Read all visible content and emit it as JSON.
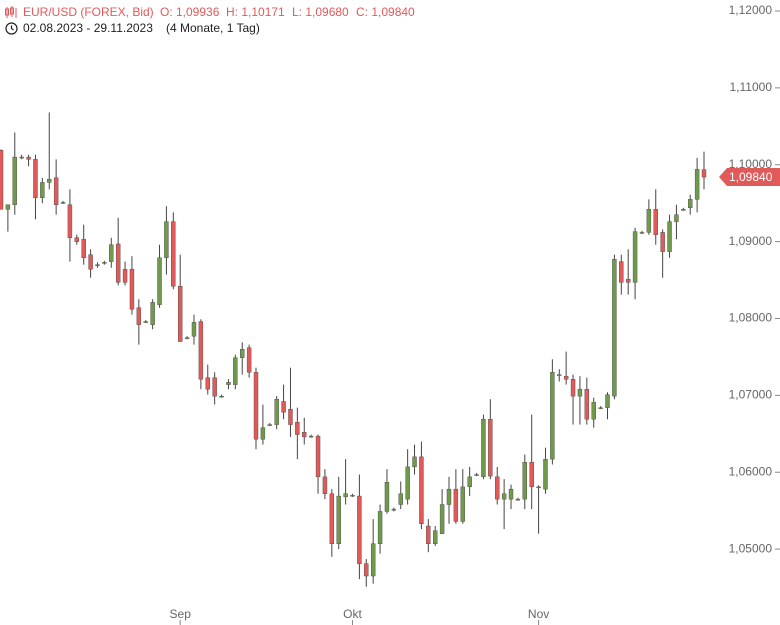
{
  "header": {
    "instrument": "EUR/USD (FOREX, Bid)",
    "open": "O: 1,09936",
    "high": "H: 1,10171",
    "low": "L: 1,09680",
    "close": "C: 1,09840",
    "range": "02.08.2023 - 29.11.2023",
    "duration": "(4 Monate, 1 Tag)"
  },
  "chart_data": {
    "type": "candlestick",
    "categories": [
      null,
      null,
      null,
      null,
      null,
      null,
      null,
      null,
      null,
      null,
      null,
      null,
      null,
      null,
      null,
      null,
      null,
      null,
      null,
      null,
      null,
      null,
      null,
      null,
      null,
      null,
      "Sep",
      null,
      null,
      null,
      null,
      null,
      null,
      null,
      null,
      null,
      null,
      null,
      null,
      null,
      null,
      null,
      null,
      null,
      null,
      null,
      null,
      null,
      null,
      null,
      null,
      "Okt",
      null,
      null,
      null,
      null,
      null,
      null,
      null,
      null,
      null,
      null,
      null,
      null,
      null,
      null,
      null,
      null,
      null,
      null,
      null,
      null,
      null,
      null,
      null,
      null,
      null,
      null,
      "Nov",
      null,
      null,
      null,
      null,
      null,
      null,
      null,
      null,
      null,
      null,
      null,
      null,
      null,
      null,
      null,
      null,
      null,
      null,
      null,
      null,
      null,
      null,
      null,
      null
    ],
    "open": [
      1.1019,
      1.0942,
      1.0948,
      1.101,
      1.101,
      1.1007,
      1.0957,
      1.0977,
      1.0983,
      1.0951,
      1.0948,
      1.0905,
      1.0903,
      1.0883,
      1.087,
      1.0873,
      1.0874,
      1.0897,
      1.0864,
      1.0864,
      1.0814,
      1.0796,
      1.0792,
      1.0818,
      1.0879,
      1.0926,
      1.0842,
      1.0775,
      1.0777,
      1.0796,
      1.0723,
      1.0723,
      1.0699,
      1.0714,
      1.0714,
      1.0749,
      1.0762,
      1.073,
      1.0643,
      1.0662,
      1.0662,
      1.0692,
      1.0682,
      1.0665,
      1.0652,
      1.0647,
      1.0647,
      1.0594,
      1.0572,
      1.0507,
      1.0568,
      1.057,
      1.0569,
      1.0481,
      1.0465,
      1.0507,
      1.0549,
      1.0552,
      1.0558,
      1.0565,
      1.0607,
      1.062,
      1.053,
      1.0507,
      1.052,
      1.0558,
      1.0578,
      1.0536,
      1.0581,
      1.0597,
      1.0594,
      1.0669,
      1.0594,
      1.0565,
      1.0565,
      1.0565,
      1.0565,
      1.0613,
      1.0581,
      1.0578,
      1.0617,
      1.0727,
      1.0725,
      1.0721,
      1.0699,
      1.0708,
      1.0669,
      1.0684,
      1.0684,
      1.0699,
      1.0874,
      1.0851,
      1.0847,
      1.0912,
      1.0912,
      1.0942,
      1.0912,
      1.0887,
      1.0926,
      1.0942,
      1.0944,
      1.0955,
      1.09936
    ],
    "high": [
      1.102,
      1.0948,
      1.1042,
      1.1013,
      1.1013,
      1.1013,
      1.0983,
      1.1068,
      1.1007,
      1.0953,
      1.0968,
      1.0909,
      1.0922,
      1.089,
      1.0873,
      1.0875,
      1.0905,
      1.0931,
      1.0874,
      1.0881,
      1.0825,
      1.0798,
      1.0825,
      1.0896,
      1.0946,
      1.0938,
      1.0883,
      1.0777,
      1.0805,
      1.0799,
      1.074,
      1.073,
      1.0701,
      1.0721,
      1.0753,
      1.0769,
      1.0766,
      1.0736,
      1.0688,
      1.0664,
      1.0699,
      1.0714,
      1.0736,
      1.0684,
      1.0671,
      1.0649,
      1.0649,
      1.0604,
      1.0578,
      1.0594,
      1.0617,
      1.0572,
      1.0597,
      1.0487,
      1.0539,
      1.0558,
      1.0604,
      1.0554,
      1.0588,
      1.063,
      1.0636,
      1.064,
      1.0539,
      1.053,
      1.0578,
      1.0594,
      1.0604,
      1.0604,
      1.0607,
      1.0599,
      1.0675,
      1.0695,
      1.0607,
      1.0591,
      1.0584,
      1.0567,
      1.0623,
      1.0675,
      1.0583,
      1.0632,
      1.0747,
      1.0734,
      1.0757,
      1.0727,
      1.0725,
      1.0723,
      1.0697,
      1.0686,
      1.0704,
      1.0883,
      1.0883,
      1.089,
      1.0918,
      1.0914,
      1.0955,
      1.0968,
      1.0916,
      1.0935,
      1.0948,
      1.0944,
      1.0961,
      1.1009,
      1.10171
    ],
    "low": [
      1.0942,
      1.0913,
      1.0935,
      1.1007,
      1.0998,
      1.0929,
      1.095,
      1.0968,
      1.0935,
      1.0949,
      1.0874,
      1.0896,
      1.087,
      1.0853,
      1.0866,
      1.087,
      1.0866,
      1.0843,
      1.0843,
      1.0805,
      1.0766,
      1.0794,
      1.0786,
      1.0814,
      1.0857,
      1.0838,
      1.077,
      1.0773,
      1.0766,
      1.0708,
      1.0701,
      1.0688,
      1.0697,
      1.0708,
      1.0708,
      1.0727,
      1.0723,
      1.063,
      1.0636,
      1.066,
      1.0656,
      1.0669,
      1.0646,
      1.0617,
      1.0636,
      1.0645,
      1.0572,
      1.0565,
      1.049,
      1.05,
      1.0558,
      1.0568,
      1.0461,
      1.0451,
      1.0455,
      1.0494,
      1.0546,
      1.0549,
      1.0552,
      1.0558,
      1.0597,
      1.0526,
      1.0496,
      1.0504,
      1.052,
      1.0533,
      1.0533,
      1.0533,
      1.0569,
      1.0595,
      1.0591,
      1.0591,
      1.0558,
      1.0526,
      1.0552,
      1.0563,
      1.0552,
      1.0552,
      1.052,
      1.0572,
      1.061,
      1.0718,
      1.0714,
      1.0662,
      1.0662,
      1.0662,
      1.0658,
      1.0682,
      1.0669,
      1.0695,
      1.0831,
      1.0831,
      1.0825,
      1.091,
      1.0909,
      1.0896,
      1.0853,
      1.0879,
      1.0903,
      1.094,
      1.0935,
      1.0938,
      1.0968
    ],
    "close": [
      1.0942,
      1.0948,
      1.101,
      1.101,
      1.1007,
      1.0957,
      1.0977,
      1.0981,
      1.0948,
      1.0951,
      1.0905,
      1.09,
      1.0879,
      1.0864,
      1.087,
      1.0873,
      1.0896,
      1.0847,
      1.0847,
      1.0812,
      1.0792,
      1.0796,
      1.0821,
      1.0879,
      1.0926,
      1.0842,
      1.077,
      1.0775,
      1.0795,
      1.0721,
      1.0708,
      1.0699,
      1.0699,
      1.0717,
      1.0749,
      1.076,
      1.073,
      1.0643,
      1.0658,
      1.0662,
      1.0695,
      1.0678,
      1.0662,
      1.0649,
      1.0646,
      1.0647,
      1.0594,
      1.0572,
      1.0507,
      1.0569,
      1.0572,
      1.057,
      1.0481,
      1.0465,
      1.0507,
      1.0549,
      1.0587,
      1.0552,
      1.0572,
      1.0607,
      1.062,
      1.0533,
      1.0507,
      1.0524,
      1.0558,
      1.0578,
      1.0536,
      1.0581,
      1.0594,
      1.0597,
      1.0669,
      1.0595,
      1.0565,
      1.0572,
      1.0578,
      1.0565,
      1.0613,
      1.0581,
      1.0581,
      1.0617,
      1.073,
      1.0727,
      1.0721,
      1.0699,
      1.0708,
      1.0669,
      1.0691,
      1.0684,
      1.0701,
      1.0877,
      1.0847,
      1.0847,
      1.0913,
      1.0912,
      1.0942,
      1.0909,
      1.0887,
      1.0926,
      1.0935,
      1.0942,
      1.0955,
      1.0994,
      1.0984
    ],
    "up_color": "#6f9a4c",
    "down_color": "#e05a5a",
    "last_price": {
      "value": 1.0984,
      "label": "1,09840"
    },
    "ylim": [
      1.04299,
      1.12143
    ],
    "yticks": [
      {
        "value": 1.05,
        "label": "1,05000"
      },
      {
        "value": 1.06,
        "label": "1,06000"
      },
      {
        "value": 1.07,
        "label": "1,07000"
      },
      {
        "value": 1.08,
        "label": "1,08000"
      },
      {
        "value": 1.09,
        "label": "1,09000"
      },
      {
        "value": 1.1,
        "label": "1,10000"
      },
      {
        "value": 1.11,
        "label": "1,11000"
      },
      {
        "value": 1.12,
        "label": "1,12000"
      }
    ]
  }
}
